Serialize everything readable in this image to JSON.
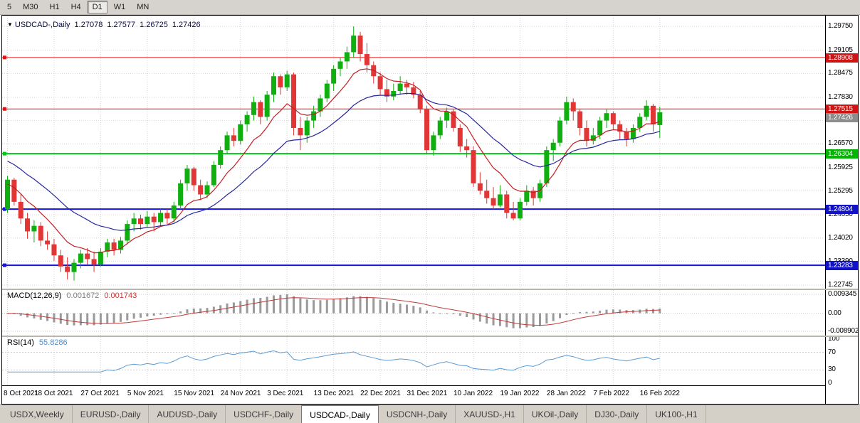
{
  "toolbar": {
    "timeframes": [
      {
        "label": "5",
        "active": false
      },
      {
        "label": "M30",
        "active": false
      },
      {
        "label": "H1",
        "active": false
      },
      {
        "label": "H4",
        "active": false
      },
      {
        "label": "D1",
        "active": true
      },
      {
        "label": "W1",
        "active": false
      },
      {
        "label": "MN",
        "active": false
      }
    ]
  },
  "chart_header": {
    "symbol": "USDCAD-,Daily",
    "open": "1.27078",
    "high": "1.27577",
    "low": "1.26725",
    "close": "1.27426"
  },
  "price_axis": {
    "labels": [
      "1.29750",
      "1.29105",
      "1.28475",
      "1.27830",
      "1.27200",
      "1.26570",
      "1.25925",
      "1.25295",
      "1.24650",
      "1.24020",
      "1.23390",
      "1.22745"
    ]
  },
  "current_price_badge": {
    "label": "1.27426",
    "color": "#8c8c8c"
  },
  "macd_panel": {
    "title": "MACD(12,26,9)",
    "value_main": "0.001672",
    "value_signal": "0.001743"
  },
  "rsi_panel": {
    "title": "RSI(14)",
    "value": "55.8286"
  },
  "tabs": [
    {
      "label": "USDX,Weekly",
      "active": false
    },
    {
      "label": "EURUSD-,Daily",
      "active": false
    },
    {
      "label": "AUDUSD-,Daily",
      "active": false
    },
    {
      "label": "USDCHF-,Daily",
      "active": false
    },
    {
      "label": "USDCAD-,Daily",
      "active": true
    },
    {
      "label": "USDCNH-,Daily",
      "active": false
    },
    {
      "label": "XAUUSD-,H1",
      "active": false
    },
    {
      "label": "UKOil-,Daily",
      "active": false
    },
    {
      "label": "DJ30-,Daily",
      "active": false
    },
    {
      "label": "UK100-,H1",
      "active": false
    }
  ],
  "colors": {
    "up": "#0faf0f",
    "down": "#e23535",
    "grid": "#d4d4d4",
    "macd_hist": "#9a9a9a",
    "macd_signal": "#c03a3a",
    "rsi": "#5b9bd5",
    "axis_text": "#000000"
  },
  "chart_data": {
    "type": "candlestick",
    "title": "USDCAD-,Daily",
    "symbol": "USDCAD",
    "timeframe": "D1",
    "ohlc_display": {
      "open": 1.27078,
      "high": 1.27577,
      "low": 1.26725,
      "close": 1.27426
    },
    "ylim": [
      1.2265,
      1.3004
    ],
    "label_every": 7,
    "x_labels": [
      "8 Oct 2021",
      "18 Oct 2021",
      "27 Oct 2021",
      "5 Nov 2021",
      "15 Nov 2021",
      "24 Nov 2021",
      "3 Dec 2021",
      "13 Dec 2021",
      "22 Dec 2021",
      "31 Dec 2021",
      "10 Jan 2022",
      "19 Jan 2022",
      "28 Jan 2022",
      "7 Feb 2022",
      "16 Feb 2022"
    ],
    "candles": [
      [
        1.248,
        1.257,
        1.247,
        1.256
      ],
      [
        1.256,
        1.2565,
        1.249,
        1.25
      ],
      [
        1.25,
        1.252,
        1.244,
        1.2455
      ],
      [
        1.2455,
        1.247,
        1.24,
        1.242
      ],
      [
        1.242,
        1.245,
        1.239,
        1.2435
      ],
      [
        1.2435,
        1.2445,
        1.238,
        1.2395
      ],
      [
        1.2395,
        1.242,
        1.237,
        1.2385
      ],
      [
        1.2385,
        1.24,
        1.234,
        1.2355
      ],
      [
        1.2355,
        1.237,
        1.231,
        1.2325
      ],
      [
        1.2325,
        1.235,
        1.229,
        1.231
      ],
      [
        1.231,
        1.2345,
        1.2287,
        1.2335
      ],
      [
        1.2335,
        1.237,
        1.232,
        1.236
      ],
      [
        1.236,
        1.2375,
        1.233,
        1.2345
      ],
      [
        1.2345,
        1.2365,
        1.231,
        1.233
      ],
      [
        1.233,
        1.2375,
        1.2325,
        1.2365
      ],
      [
        1.2365,
        1.24,
        1.235,
        1.239
      ],
      [
        1.239,
        1.24,
        1.2355,
        1.237
      ],
      [
        1.237,
        1.2405,
        1.236,
        1.2395
      ],
      [
        1.2395,
        1.245,
        1.2385,
        1.244
      ],
      [
        1.244,
        1.247,
        1.242,
        1.2455
      ],
      [
        1.2455,
        1.2465,
        1.2425,
        1.244
      ],
      [
        1.244,
        1.2475,
        1.243,
        1.246
      ],
      [
        1.246,
        1.247,
        1.242,
        1.2445
      ],
      [
        1.2445,
        1.248,
        1.2435,
        1.247
      ],
      [
        1.247,
        1.248,
        1.244,
        1.2455
      ],
      [
        1.2455,
        1.25,
        1.2445,
        1.249
      ],
      [
        1.249,
        1.256,
        1.248,
        1.255
      ],
      [
        1.255,
        1.26,
        1.253,
        1.259
      ],
      [
        1.259,
        1.2595,
        1.253,
        1.2545
      ],
      [
        1.2545,
        1.256,
        1.2505,
        1.252
      ],
      [
        1.252,
        1.2555,
        1.251,
        1.2545
      ],
      [
        1.2545,
        1.261,
        1.254,
        1.26
      ],
      [
        1.26,
        1.265,
        1.259,
        1.264
      ],
      [
        1.264,
        1.269,
        1.263,
        1.268
      ],
      [
        1.268,
        1.27,
        1.265,
        1.2665
      ],
      [
        1.2665,
        1.272,
        1.2655,
        1.271
      ],
      [
        1.271,
        1.2745,
        1.269,
        1.2735
      ],
      [
        1.2735,
        1.2785,
        1.272,
        1.277
      ],
      [
        1.277,
        1.2775,
        1.271,
        1.273
      ],
      [
        1.273,
        1.28,
        1.272,
        1.279
      ],
      [
        1.279,
        1.285,
        1.277,
        1.284
      ],
      [
        1.284,
        1.2845,
        1.279,
        1.281
      ],
      [
        1.281,
        1.2855,
        1.28,
        1.2845
      ],
      [
        1.2845,
        1.285,
        1.268,
        1.27
      ],
      [
        1.27,
        1.273,
        1.264,
        1.268
      ],
      [
        1.268,
        1.273,
        1.266,
        1.272
      ],
      [
        1.272,
        1.276,
        1.27,
        1.2745
      ],
      [
        1.2745,
        1.279,
        1.273,
        1.278
      ],
      [
        1.278,
        1.283,
        1.277,
        1.282
      ],
      [
        1.282,
        1.287,
        1.28,
        1.286
      ],
      [
        1.286,
        1.289,
        1.284,
        1.288
      ],
      [
        1.288,
        1.292,
        1.286,
        1.2905
      ],
      [
        1.2905,
        1.2975,
        1.289,
        1.295
      ],
      [
        1.295,
        1.296,
        1.288,
        1.29
      ],
      [
        1.29,
        1.293,
        1.285,
        1.287
      ],
      [
        1.287,
        1.288,
        1.282,
        1.284
      ],
      [
        1.284,
        1.285,
        1.279,
        1.2805
      ],
      [
        1.2805,
        1.283,
        1.277,
        1.2785
      ],
      [
        1.2785,
        1.282,
        1.2775,
        1.28
      ],
      [
        1.28,
        1.284,
        1.279,
        1.282
      ],
      [
        1.282,
        1.283,
        1.279,
        1.281
      ],
      [
        1.281,
        1.2825,
        1.278,
        1.279
      ],
      [
        1.279,
        1.28,
        1.274,
        1.275
      ],
      [
        1.275,
        1.276,
        1.263,
        1.264
      ],
      [
        1.264,
        1.269,
        1.2625,
        1.268
      ],
      [
        1.268,
        1.273,
        1.267,
        1.272
      ],
      [
        1.272,
        1.2755,
        1.27,
        1.2745
      ],
      [
        1.2745,
        1.275,
        1.269,
        1.27
      ],
      [
        1.27,
        1.271,
        1.2635,
        1.265
      ],
      [
        1.265,
        1.267,
        1.262,
        1.264
      ],
      [
        1.264,
        1.265,
        1.254,
        1.255
      ],
      [
        1.255,
        1.258,
        1.252,
        1.253
      ],
      [
        1.253,
        1.256,
        1.2495,
        1.251
      ],
      [
        1.251,
        1.254,
        1.248,
        1.249
      ],
      [
        1.249,
        1.2545,
        1.2485,
        1.252
      ],
      [
        1.252,
        1.253,
        1.2455,
        1.247
      ],
      [
        1.247,
        1.25,
        1.245,
        1.2455
      ],
      [
        1.2455,
        1.251,
        1.245,
        1.25
      ],
      [
        1.25,
        1.2545,
        1.249,
        1.253
      ],
      [
        1.253,
        1.254,
        1.249,
        1.251
      ],
      [
        1.251,
        1.256,
        1.25,
        1.255
      ],
      [
        1.255,
        1.265,
        1.254,
        1.264
      ],
      [
        1.264,
        1.267,
        1.261,
        1.266
      ],
      [
        1.266,
        1.273,
        1.265,
        1.272
      ],
      [
        1.272,
        1.2785,
        1.271,
        1.277
      ],
      [
        1.277,
        1.278,
        1.272,
        1.2745
      ],
      [
        1.2745,
        1.275,
        1.268,
        1.27
      ],
      [
        1.27,
        1.272,
        1.265,
        1.2665
      ],
      [
        1.2665,
        1.27,
        1.2655,
        1.268
      ],
      [
        1.268,
        1.273,
        1.267,
        1.272
      ],
      [
        1.272,
        1.275,
        1.27,
        1.274
      ],
      [
        1.274,
        1.2745,
        1.2695,
        1.271
      ],
      [
        1.271,
        1.272,
        1.267,
        1.269
      ],
      [
        1.269,
        1.27,
        1.265,
        1.267
      ],
      [
        1.267,
        1.271,
        1.266,
        1.27
      ],
      [
        1.27,
        1.274,
        1.269,
        1.273
      ],
      [
        1.273,
        1.2775,
        1.272,
        1.276
      ],
      [
        1.276,
        1.2765,
        1.269,
        1.271
      ],
      [
        1.27078,
        1.27577,
        1.26725,
        1.27426
      ]
    ],
    "overlays": [
      {
        "name": "ma-fast-line",
        "type": "ema",
        "period": 9,
        "seed": 1.2545,
        "color": "#c41e22"
      },
      {
        "name": "ma-slow-line",
        "type": "ema",
        "period": 22,
        "seed": 1.2615,
        "color": "#26269e"
      }
    ],
    "hlines": [
      {
        "label": "1.28908",
        "price": 1.28908,
        "color": "#e01414",
        "width": 1,
        "badge": "#d01414"
      },
      {
        "label": "1.27515",
        "price": 1.27515,
        "color": "#e01414",
        "width": 1,
        "badge": "#d01414"
      },
      {
        "label": "1.26304",
        "price": 1.26304,
        "color": "#00c814",
        "width": 2,
        "badge": "#00b400"
      },
      {
        "label": "1.24804",
        "price": 1.24804,
        "color": "#1414dc",
        "width": 2,
        "badge": "#1212c8"
      },
      {
        "label": "1.23283",
        "price": 1.23283,
        "color": "#1414dc",
        "width": 2,
        "badge": "#1212c8"
      }
    ],
    "current_price": 1.27426,
    "indicators": [
      {
        "type": "MACD",
        "params": [
          12,
          26,
          9
        ],
        "last_values": [
          0.001672,
          0.001743
        ],
        "axis_labels": [
          "0.009345",
          "0.00",
          "-0.008902"
        ],
        "scale_max": 0.009345,
        "scale_min": -0.008902
      },
      {
        "type": "RSI",
        "params": [
          14
        ],
        "last_value": 55.8286,
        "axis_labels": [
          "100",
          "70",
          "30",
          "0"
        ],
        "axis_values": [
          100,
          70,
          30,
          0
        ],
        "levels": [
          70,
          30
        ]
      }
    ]
  }
}
